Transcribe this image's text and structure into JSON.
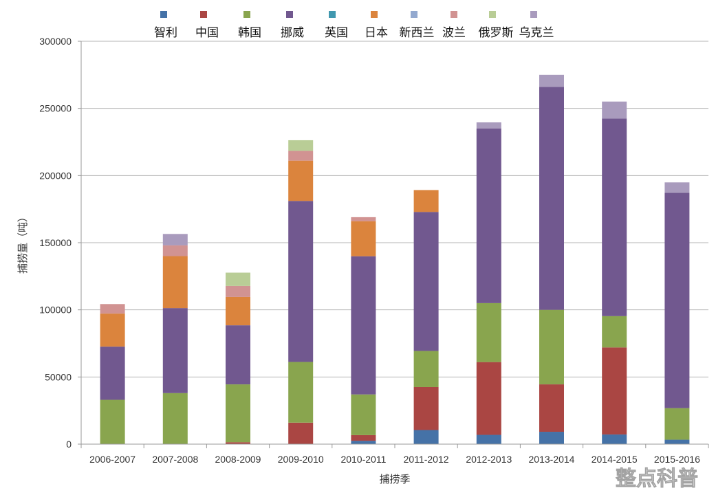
{
  "chart_data": {
    "type": "bar",
    "stacked": true,
    "title": "",
    "xlabel": "捕捞季",
    "ylabel": "捕捞量（吨）",
    "ylim": [
      0,
      300000
    ],
    "yticks": [
      "0",
      "50000",
      "100000",
      "150000",
      "200000",
      "250000",
      "300000"
    ],
    "grid": true,
    "legend_position": "top",
    "categories": [
      "2006-2007",
      "2007-2008",
      "2008-2009",
      "2009-2010",
      "2010-2011",
      "2011-2012",
      "2012-2013",
      "2013-2014",
      "2014-2015",
      "2015-2016"
    ],
    "series": [
      {
        "name": "智利",
        "color": "#4572a7",
        "values": [
          0,
          0,
          0,
          0,
          2500,
          10500,
          6900,
          9200,
          7200,
          3300
        ]
      },
      {
        "name": "中国",
        "color": "#aa4643",
        "values": [
          0,
          0,
          1400,
          16000,
          4200,
          32000,
          54200,
          35300,
          64800,
          0
        ]
      },
      {
        "name": "韩国",
        "color": "#89a54e",
        "values": [
          33000,
          38000,
          43100,
          45200,
          30300,
          26900,
          43900,
          55500,
          23300,
          23500
        ]
      },
      {
        "name": "挪威",
        "color": "#71588f",
        "values": [
          39600,
          63300,
          44000,
          119900,
          102900,
          103500,
          130000,
          166000,
          147200,
          160300
        ]
      },
      {
        "name": "英国",
        "color": "#4198af",
        "values": [
          0,
          0,
          0,
          0,
          0,
          0,
          0,
          0,
          0,
          0
        ]
      },
      {
        "name": "日本",
        "color": "#db843d",
        "values": [
          24600,
          38700,
          21100,
          30000,
          26100,
          16300,
          0,
          0,
          0,
          0
        ]
      },
      {
        "name": "新西兰",
        "color": "#93a9cf",
        "values": [
          0,
          0,
          0,
          0,
          0,
          0,
          0,
          0,
          0,
          0
        ]
      },
      {
        "name": "波兰",
        "color": "#d19392",
        "values": [
          7100,
          8000,
          8200,
          7300,
          3000,
          0,
          0,
          0,
          0,
          0
        ]
      },
      {
        "name": "俄罗斯",
        "color": "#b9cd96",
        "values": [
          0,
          0,
          9900,
          7900,
          0,
          0,
          0,
          0,
          0,
          0
        ]
      },
      {
        "name": "乌克兰",
        "color": "#a99bbd",
        "values": [
          0,
          8500,
          0,
          0,
          0,
          0,
          4600,
          9000,
          12600,
          7800
        ]
      }
    ]
  },
  "watermark": "整点科普"
}
